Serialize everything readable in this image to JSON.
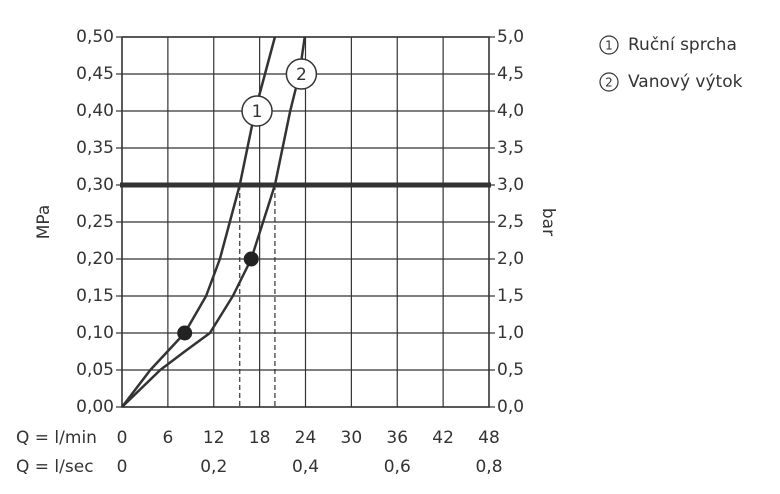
{
  "chart_data": {
    "type": "line",
    "y_label": "MPa",
    "y2_label": "bar",
    "x_label": "Q = l/min",
    "x2_label": "Q = l/sec",
    "xlim": [
      0,
      48
    ],
    "xticks": [
      0,
      6,
      12,
      18,
      24,
      30,
      36,
      42,
      48
    ],
    "x2lim": [
      0,
      0.8
    ],
    "x2ticks": [
      0,
      {
        "value": 0.2,
        "label": "0,2"
      },
      {
        "value": 0.4,
        "label": "0,4"
      },
      {
        "value": 0.6,
        "label": "0,6"
      },
      {
        "value": 0.8,
        "label": "0,8"
      }
    ],
    "ylim": [
      0,
      0.5
    ],
    "yticks": [
      {
        "value": 0,
        "label": "0,00"
      },
      {
        "value": 0.05,
        "label": "0,05"
      },
      {
        "value": 0.1,
        "label": "0,10"
      },
      {
        "value": 0.15,
        "label": "0,15"
      },
      {
        "value": 0.2,
        "label": "0,20"
      },
      {
        "value": 0.25,
        "label": "0,25"
      },
      {
        "value": 0.3,
        "label": "0,30"
      },
      {
        "value": 0.35,
        "label": "0,35"
      },
      {
        "value": 0.4,
        "label": "0,40"
      },
      {
        "value": 0.45,
        "label": "0,45"
      },
      {
        "value": 0.5,
        "label": "0,50"
      }
    ],
    "y2lim": [
      0,
      5
    ],
    "y2ticks": [
      {
        "value": 0,
        "label": "0,0"
      },
      {
        "value": 0.5,
        "label": "0,5"
      },
      {
        "value": 1,
        "label": "1,0"
      },
      {
        "value": 1.5,
        "label": "1,5"
      },
      {
        "value": 2,
        "label": "2,0"
      },
      {
        "value": 2.5,
        "label": "2,5"
      },
      {
        "value": 3,
        "label": "3,0"
      },
      {
        "value": 3.5,
        "label": "3,5"
      },
      {
        "value": 4,
        "label": "4,0"
      },
      {
        "value": 4.5,
        "label": "4,5"
      },
      {
        "value": 5,
        "label": "5,0"
      }
    ],
    "grid": true,
    "reference_y": 0.3,
    "reference_x": [
      15.4,
      20.0
    ],
    "series": [
      {
        "name": "Ruční sprcha",
        "label": "1",
        "color": "#333333",
        "x": [
          0,
          3.7,
          8.2,
          11,
          12.8,
          15.4,
          17.4,
          20
        ],
        "values": [
          0,
          0.05,
          0.1,
          0.15,
          0.2,
          0.3,
          0.4,
          0.5
        ]
      },
      {
        "name": "Vanový výtok",
        "label": "2",
        "color": "#333333",
        "x": [
          0,
          5,
          8.2,
          11.5,
          14.5,
          16.9,
          20,
          22,
          23.2,
          23.9
        ],
        "values": [
          0,
          0.05,
          0.075,
          0.1,
          0.15,
          0.2,
          0.3,
          0.4,
          0.45,
          0.5
        ]
      }
    ],
    "markers": [
      {
        "x": 8.2,
        "y": 0.1
      },
      {
        "x": 16.9,
        "y": 0.2
      }
    ]
  }
}
